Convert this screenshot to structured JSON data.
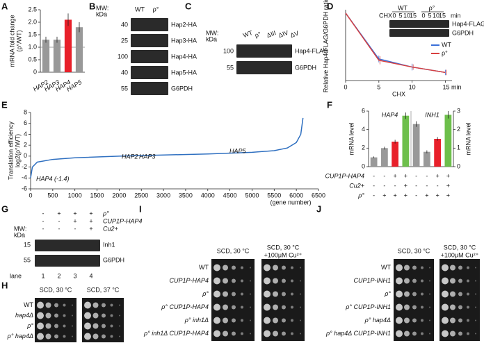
{
  "chart_data": [
    {
      "type": "bar",
      "ylabel": [
        "mRNA fold change",
        "(ρ°/WT)"
      ],
      "categories": [
        "HAP2",
        "HAP3",
        "HAP4",
        "HAP5"
      ],
      "values": [
        1.3,
        1.3,
        2.1,
        1.8
      ],
      "errors": [
        0.12,
        0.12,
        0.25,
        0.2
      ],
      "colors": [
        "#999999",
        "#999999",
        "#e8202a",
        "#999999"
      ],
      "category_label_colors": [
        "#111111",
        "#111111",
        "#e8202a",
        "#111111"
      ],
      "ylim": [
        0,
        2.5
      ],
      "yticks": [
        0,
        {
          "value": 0.5,
          "label": "0.5"
        },
        {
          "value": 1,
          "label": "1.0"
        },
        {
          "value": 1.5,
          "label": "1.5"
        },
        {
          "value": 2,
          "label": "2.0"
        },
        {
          "value": 2.5,
          "label": "2.5"
        }
      ],
      "reference_line": 1
    },
    {
      "type": "line",
      "ylabel": [
        "Relative Hap4-FLAG/G6PDH ratio"
      ],
      "xlabel": "CHX",
      "x": [
        0,
        5,
        10,
        15
      ],
      "xlim": [
        0,
        16
      ],
      "ylim": [
        0,
        1.05
      ],
      "xticks": [
        0,
        5,
        10,
        {
          "value": 15,
          "label": "15 min"
        }
      ],
      "legend": "right",
      "series": [
        {
          "name": "WT",
          "color": "#3a6fd8",
          "values": [
            1,
            0.32,
            0.2,
            0.12
          ],
          "errors": [
            0,
            0.05,
            0.05,
            0.04
          ]
        },
        {
          "name": "ρ°",
          "color": "#d84040",
          "values": [
            1,
            0.3,
            0.2,
            0.12
          ],
          "errors": [
            0,
            0.06,
            0.04,
            0.04
          ]
        }
      ]
    },
    {
      "type": "line",
      "ylabel": [
        "Translation efficiency",
        "log2(ρ°/WT)"
      ],
      "xlabel": "(gene number)",
      "x": [
        0,
        40,
        150,
        500,
        1000,
        2000,
        3000,
        4000,
        5000,
        5500,
        5800,
        6000,
        6100,
        6150
      ],
      "xlim": [
        0,
        6500
      ],
      "ylim": [
        -6,
        8
      ],
      "xticks": [
        0,
        500,
        1000,
        1500,
        2000,
        2500,
        3000,
        3500,
        4000,
        4500,
        5000,
        5500,
        6000,
        6500
      ],
      "yticks": [
        -6,
        -4,
        -2,
        0,
        2,
        4,
        6,
        8
      ],
      "series": [
        {
          "color": "#2e6fc0",
          "values": [
            -4,
            -2,
            -1.1,
            -0.6,
            -0.3,
            0,
            0.2,
            0.4,
            0.7,
            1,
            1.5,
            2.5,
            4,
            7
          ]
        }
      ],
      "annotations": [
        {
          "text": "HAP2",
          "color": "#8dc63f"
        },
        {
          "text": "HAP3",
          "color": "#8dc63f"
        },
        {
          "text": "HAP5",
          "color": "#8dc63f"
        },
        {
          "text": "HAP4 (-1.4)",
          "color": "#e8202a"
        }
      ]
    },
    {
      "type": "bar",
      "ylabel": [
        "mRNA level"
      ],
      "y2label": [
        "mRNA level"
      ],
      "ylim": [
        0,
        6
      ],
      "yticks": [
        0,
        2,
        4,
        6
      ],
      "y2lim": [
        0,
        3
      ],
      "y2ticks": [
        0,
        1,
        2,
        3
      ],
      "series": [
        {
          "name": "HAP4",
          "axis": "y",
          "values": [
            1,
            2,
            2.7,
            5.5
          ],
          "errors": [
            0.1,
            0.15,
            0.2,
            0.35
          ],
          "colors": [
            "#999999",
            "#999999",
            "#e8202a",
            "#6dbf4b"
          ]
        },
        {
          "name": "INH1",
          "axis": "y2",
          "values": [
            2.3,
            0.8,
            1.5,
            2.8
          ],
          "errors": [
            0.15,
            0.08,
            0.1,
            0.2
          ],
          "colors": [
            "#999999",
            "#999999",
            "#e8202a",
            "#6dbf4b"
          ]
        }
      ],
      "condition_rows": [
        {
          "label": "CUP1P-HAP4",
          "signs": [
            "-",
            "-",
            "+",
            "+",
            "-",
            "-",
            "+",
            "+"
          ]
        },
        {
          "label": "Cu2+",
          "signs": [
            "-",
            "-",
            "-",
            "+",
            "-",
            "-",
            "-",
            "+"
          ]
        },
        {
          "label": "ρ°",
          "signs": [
            "-",
            "+",
            "+",
            "+",
            "-",
            "+",
            "+",
            "+"
          ]
        }
      ]
    }
  ],
  "panel_labels": [
    "A",
    "B",
    "C",
    "D",
    "E",
    "F",
    "G",
    "H",
    "I",
    "J"
  ],
  "blot_B": {
    "mw_label": "MW:",
    "mw_unit": "kDa",
    "lanes": [
      "WT",
      "ρ°"
    ],
    "markers": [
      40,
      25,
      100,
      40,
      55
    ],
    "bands": [
      "Hap2-HA",
      "Hap3-HA",
      "Hap4-HA",
      "Hap5-HA",
      "G6PDH"
    ]
  },
  "blot_C": {
    "mw_label": "MW:",
    "mw_unit": "kDa",
    "lanes": [
      "WT",
      "ρ°",
      "ΔIII",
      "ΔIV",
      "ΔV"
    ],
    "markers": [
      100,
      55
    ],
    "bands": [
      "Hap4-FLAG",
      "G6PDH"
    ]
  },
  "blot_D": {
    "groups": [
      "WT",
      "ρ°"
    ],
    "treatment": "CHX",
    "timepoints": [
      0,
      5,
      10,
      15
    ],
    "unit": "min",
    "bands": [
      "Hap4-FLAG",
      "G6PDH"
    ]
  },
  "blot_G": {
    "rows": [
      {
        "label": "ρ°",
        "signs": [
          "-",
          "+",
          "+",
          "+"
        ]
      },
      {
        "label": "CUP1P-HAP4",
        "signs": [
          "-",
          "-",
          "+",
          "+"
        ]
      },
      {
        "label": "Cu2+",
        "signs": [
          "-",
          "-",
          "-",
          "+"
        ]
      }
    ],
    "mw_label": "MW:",
    "mw_unit": "kDa",
    "markers": [
      15,
      55
    ],
    "bands": [
      "Inh1",
      "G6PDH"
    ],
    "lane_label": "lane",
    "lanes": [
      1,
      2,
      3,
      4
    ]
  },
  "spot_H": {
    "conditions": [
      [
        "SCD, 30 °C"
      ],
      [
        "SCD, 37 °C"
      ]
    ],
    "strains": [
      "WT",
      "hap4Δ",
      "ρ°",
      "ρ° hap4Δ"
    ]
  },
  "spot_I": {
    "conditions": [
      [
        "SCD, 30 °C"
      ],
      [
        "SCD, 30 °C",
        "+100μM Cu²⁺"
      ]
    ],
    "strains": [
      "WT",
      "CUP1P-HAP4",
      "ρ°",
      "ρ° CUP1P-HAP4",
      "ρ° inh1Δ",
      "ρ° inh1Δ CUP1P-HAP4"
    ]
  },
  "spot_J": {
    "conditions": [
      [
        "SCD, 30 °C"
      ],
      [
        "SCD, 30 °C",
        "+100μM Cu²⁺"
      ]
    ],
    "strains": [
      "WT",
      "CUP1P-INH1",
      "ρ°",
      "ρ° CUP1P-INH1",
      "ρ° hap4Δ",
      "ρ° hap4Δ CUP1P-INH1"
    ]
  }
}
